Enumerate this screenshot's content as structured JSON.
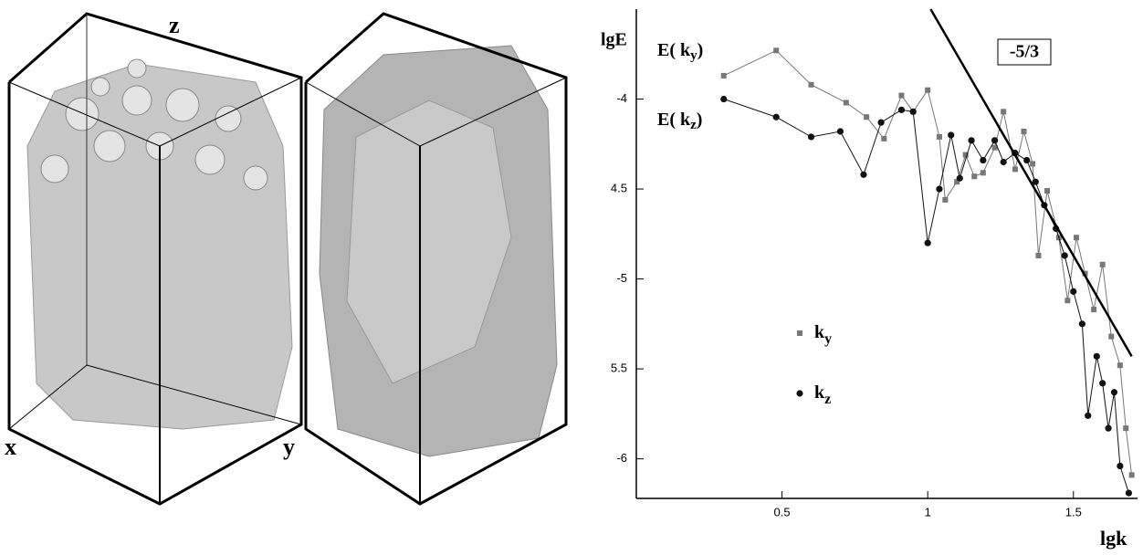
{
  "panels": {
    "labels": [
      "z",
      "x",
      "y"
    ]
  },
  "chart_data": {
    "type": "scatter-line",
    "x_label": "lgk",
    "y_label": "lgE",
    "xlim": [
      0,
      1.72
    ],
    "ylim": [
      -6.22,
      -3.5
    ],
    "xticks": [
      0.5,
      1,
      1.5
    ],
    "yticks": [
      -4,
      {
        "value": -4.5,
        "label": "4.5"
      },
      -5,
      {
        "value": -5.5,
        "label": "5.5"
      },
      -6
    ],
    "series": [
      {
        "name": "k",
        "subscript": "y",
        "marker": "square",
        "color": "#777777",
        "x": [
          0.3,
          0.48,
          0.6,
          0.72,
          0.79,
          0.85,
          0.91,
          0.95,
          1.0,
          1.04,
          1.06,
          1.1,
          1.13,
          1.16,
          1.19,
          1.23,
          1.26,
          1.3,
          1.33,
          1.36,
          1.38,
          1.41,
          1.45,
          1.48,
          1.51,
          1.54,
          1.57,
          1.6,
          1.63,
          1.66,
          1.68,
          1.7
        ],
        "values": [
          -3.87,
          -3.73,
          -3.92,
          -4.02,
          -4.1,
          -4.22,
          -3.98,
          -4.07,
          -3.95,
          -4.21,
          -4.56,
          -4.46,
          -4.31,
          -4.43,
          -4.41,
          -4.27,
          -4.07,
          -4.39,
          -4.18,
          -4.36,
          -4.87,
          -4.51,
          -4.77,
          -5.12,
          -4.77,
          -4.97,
          -5.17,
          -4.92,
          -5.32,
          -5.48,
          -5.83,
          -6.09
        ]
      },
      {
        "name": "k",
        "subscript": "z",
        "marker": "circle",
        "color": "#111111",
        "x": [
          0.3,
          0.48,
          0.6,
          0.7,
          0.78,
          0.84,
          0.91,
          0.95,
          1.0,
          1.04,
          1.08,
          1.11,
          1.15,
          1.19,
          1.23,
          1.26,
          1.3,
          1.34,
          1.37,
          1.4,
          1.44,
          1.47,
          1.5,
          1.53,
          1.55,
          1.58,
          1.6,
          1.62,
          1.64,
          1.66,
          1.69
        ],
        "values": [
          -4.0,
          -4.1,
          -4.21,
          -4.18,
          -4.42,
          -4.13,
          -4.06,
          -4.07,
          -4.8,
          -4.5,
          -4.2,
          -4.44,
          -4.23,
          -4.34,
          -4.23,
          -4.35,
          -4.3,
          -4.34,
          -4.46,
          -4.59,
          -4.72,
          -4.87,
          -5.07,
          -5.25,
          -5.76,
          -5.43,
          -5.58,
          -5.83,
          -5.63,
          -6.04,
          -6.19
        ]
      }
    ],
    "annotations": [
      {
        "text": "E( k",
        "subscript": "y",
        "close": ")"
      },
      {
        "text": "E( k",
        "subscript": "z",
        "close": ")"
      }
    ],
    "reference_line": {
      "label": "-5/3",
      "x": [
        1.01,
        1.7
      ],
      "values": [
        -3.5,
        -5.43
      ]
    }
  }
}
